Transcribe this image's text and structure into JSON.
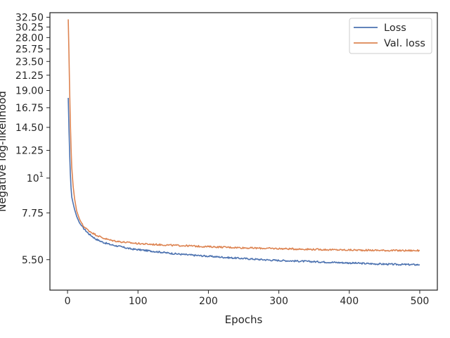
{
  "chart_data": {
    "type": "line",
    "xlabel": "Epochs",
    "ylabel": "Negative log-likelihood",
    "xlim": [
      -25,
      525
    ],
    "ylim": [
      4.4,
      33.6
    ],
    "yscale": "log",
    "grid": false,
    "legend_position": "top-right",
    "xticks": [
      0,
      100,
      200,
      300,
      400,
      500
    ],
    "xtick_labels": [
      "0",
      "100",
      "200",
      "300",
      "400",
      "500"
    ],
    "yticks": [
      5.5,
      7.75,
      10,
      12.25,
      14.5,
      16.75,
      19.0,
      21.25,
      23.5,
      25.75,
      28.0,
      30.25,
      32.5
    ],
    "ytick_labels": [
      "5.50",
      "7.75",
      "10^1",
      "12.25",
      "14.50",
      "16.75",
      "19.00",
      "21.25",
      "23.50",
      "25.75",
      "28.00",
      "30.25",
      "32.50"
    ],
    "series": [
      {
        "name": "Loss",
        "color": "#4c72b0",
        "x": [
          1,
          2,
          3,
          4,
          5,
          6,
          8,
          10,
          13,
          17,
          22,
          30,
          40,
          50,
          60,
          75,
          90,
          100,
          115,
          130,
          150,
          170,
          190,
          210,
          230,
          260,
          290,
          320,
          350,
          380,
          410,
          440,
          470,
          500
        ],
        "y": [
          18.0,
          14.5,
          12.0,
          10.3,
          9.3,
          8.7,
          8.3,
          7.95,
          7.55,
          7.2,
          6.95,
          6.65,
          6.4,
          6.25,
          6.15,
          6.05,
          5.95,
          5.92,
          5.87,
          5.82,
          5.75,
          5.7,
          5.66,
          5.62,
          5.58,
          5.53,
          5.48,
          5.45,
          5.42,
          5.39,
          5.36,
          5.33,
          5.31,
          5.3
        ]
      },
      {
        "name": "Val. loss",
        "color": "#dd8452",
        "x": [
          1,
          2,
          3,
          4,
          5,
          6,
          8,
          10,
          13,
          17,
          22,
          30,
          40,
          50,
          60,
          75,
          90,
          100,
          115,
          130,
          150,
          170,
          190,
          210,
          230,
          260,
          290,
          320,
          350,
          380,
          410,
          440,
          470,
          500
        ],
        "y": [
          32.0,
          25.0,
          19.0,
          15.0,
          12.5,
          10.8,
          9.4,
          8.6,
          7.85,
          7.4,
          7.05,
          6.8,
          6.6,
          6.45,
          6.35,
          6.27,
          6.22,
          6.19,
          6.16,
          6.14,
          6.11,
          6.09,
          6.06,
          6.04,
          6.02,
          5.99,
          5.97,
          5.95,
          5.93,
          5.91,
          5.9,
          5.89,
          5.88,
          5.88
        ]
      }
    ]
  }
}
